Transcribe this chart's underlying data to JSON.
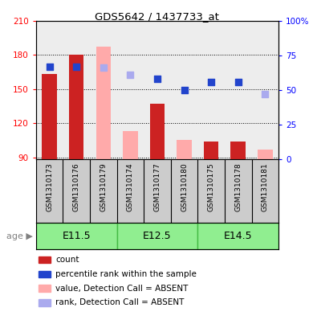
{
  "title": "GDS5642 / 1437733_at",
  "samples": [
    "GSM1310173",
    "GSM1310176",
    "GSM1310179",
    "GSM1310174",
    "GSM1310177",
    "GSM1310180",
    "GSM1310175",
    "GSM1310178",
    "GSM1310181"
  ],
  "age_groups": [
    {
      "label": "E11.5",
      "start": 0,
      "end": 3
    },
    {
      "label": "E12.5",
      "start": 3,
      "end": 6
    },
    {
      "label": "E14.5",
      "start": 6,
      "end": 9
    }
  ],
  "ylim_left": [
    88,
    210
  ],
  "ylim_right": [
    0,
    100
  ],
  "yticks_left": [
    90,
    120,
    150,
    180,
    210
  ],
  "yticks_right": [
    0,
    25,
    50,
    75,
    100
  ],
  "count_bars": {
    "values": [
      163,
      180,
      null,
      null,
      137,
      null,
      104,
      104,
      null
    ],
    "color": "#cc2222",
    "absent_values": [
      null,
      null,
      187,
      113,
      null,
      105,
      null,
      null,
      97
    ],
    "absent_color": "#ffaaaa"
  },
  "rank_dots": {
    "values": [
      67,
      67,
      null,
      null,
      58,
      50,
      56,
      56,
      null
    ],
    "color": "#2244cc",
    "absent_values": [
      null,
      null,
      66,
      61,
      null,
      null,
      null,
      null,
      47
    ],
    "absent_color": "#aaaaee"
  },
  "bar_width": 0.55,
  "legend": [
    {
      "label": "count",
      "color": "#cc2222"
    },
    {
      "label": "percentile rank within the sample",
      "color": "#2244cc"
    },
    {
      "label": "value, Detection Call = ABSENT",
      "color": "#ffaaaa"
    },
    {
      "label": "rank, Detection Call = ABSENT",
      "color": "#aaaaee"
    }
  ],
  "age_label": "age",
  "background_color": "#ffffff",
  "plot_bg_color": "#ffffff",
  "age_row_color": "#90ee90",
  "age_row_border_color": "#44bb44",
  "sample_row_color": "#cccccc"
}
